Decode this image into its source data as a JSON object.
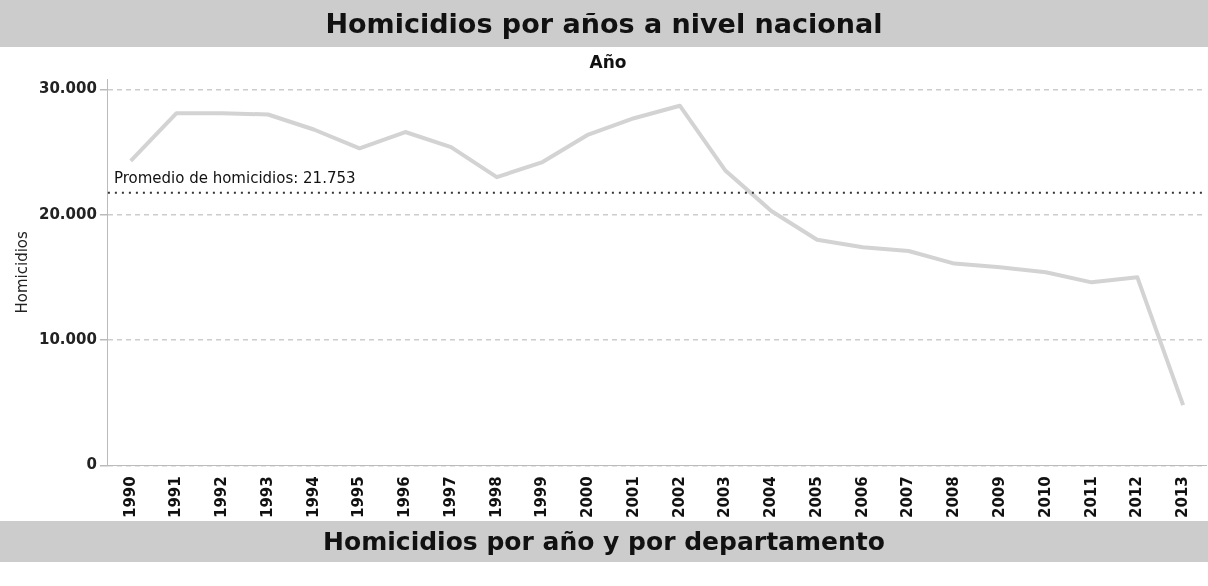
{
  "chart_data": {
    "type": "line",
    "title": "Homicidios por años a nivel nacional",
    "xlabel": "Año",
    "ylabel": "Homicidios",
    "categories": [
      "1990",
      "1991",
      "1992",
      "1993",
      "1994",
      "1995",
      "1996",
      "1997",
      "1998",
      "1999",
      "2000",
      "2001",
      "2002",
      "2003",
      "2004",
      "2005",
      "2006",
      "2007",
      "2008",
      "2009",
      "2010",
      "2011",
      "2012",
      "2013"
    ],
    "series": [
      {
        "color": "#d3d3d3",
        "values": [
          24300,
          28100,
          28100,
          28000,
          26800,
          25300,
          26600,
          25400,
          23000,
          24200,
          26400,
          27700,
          28700,
          23500,
          20300,
          18000,
          17400,
          17100,
          16100,
          15800,
          15400,
          14600,
          15000,
          4800
        ]
      }
    ],
    "ylim": [
      0,
      30800
    ],
    "yticks": [
      {
        "value": 0,
        "label": "0"
      },
      {
        "value": 10000,
        "label": "10.000"
      },
      {
        "value": 20000,
        "label": "20.000"
      },
      {
        "value": 30000,
        "label": "30.000"
      }
    ],
    "ref_lines": [
      {
        "axis": "y",
        "value": 21753,
        "label": "Promedio de homicidios: 21.753",
        "color": "#333333",
        "line_style": "dotted"
      }
    ],
    "annotations": [
      "Homicidios por año y por departamento"
    ],
    "grid": "y",
    "legend": false,
    "marker": "none",
    "line_style": "solid"
  }
}
